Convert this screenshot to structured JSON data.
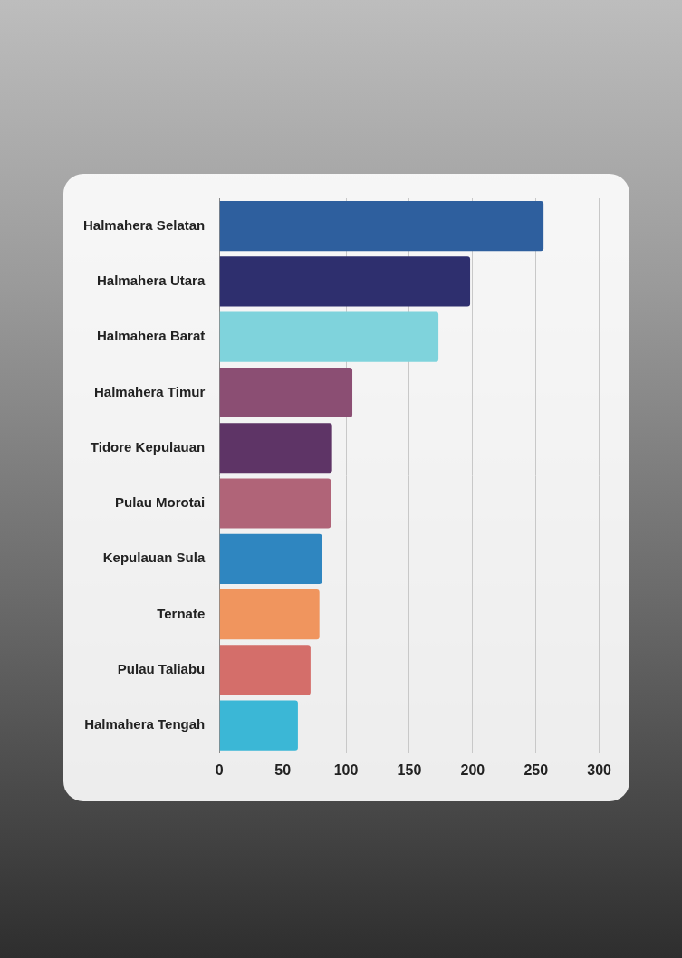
{
  "chart_data": {
    "type": "bar",
    "orientation": "horizontal",
    "categories": [
      "Halmahera Selatan",
      "Halmahera Utara",
      "Halmahera Barat",
      "Halmahera Timur",
      "Tidore Kepulauan",
      "Pulau Morotai",
      "Kepulauan Sula",
      "Ternate",
      "Pulau Taliabu",
      "Halmahera Tengah"
    ],
    "values": [
      256,
      198,
      173,
      105,
      89,
      88,
      81,
      79,
      72,
      62
    ],
    "colors": [
      "#2e5f9e",
      "#2e2f6e",
      "#7fd3dc",
      "#8b4e73",
      "#5e3466",
      "#b06478",
      "#2f86c0",
      "#f0955e",
      "#d46e6a",
      "#3bb7d6"
    ],
    "xlim": [
      0,
      300
    ],
    "xticks": [
      0,
      50,
      100,
      150,
      200,
      250,
      300
    ],
    "grid": true
  }
}
